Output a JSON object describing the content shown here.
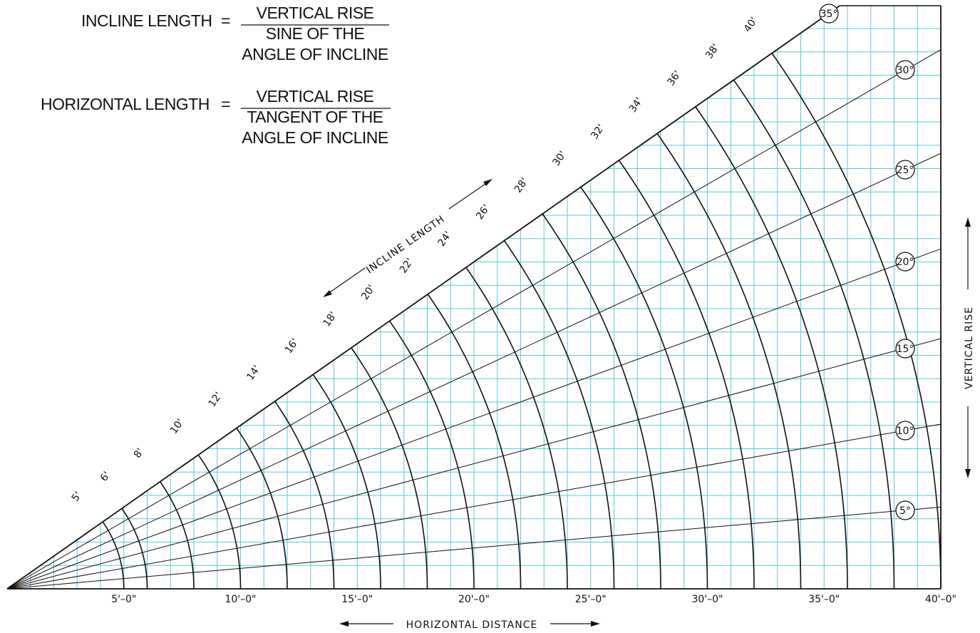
{
  "formulas": {
    "incline": {
      "lhs": "INCLINE LENGTH",
      "eq": "=",
      "numerator": "VERTICAL RISE",
      "denominator_line1": "SINE OF THE",
      "denominator_line2": "ANGLE OF INCLINE"
    },
    "horizontal": {
      "lhs": "HORIZONTAL LENGTH",
      "eq": "=",
      "numerator": "VERTICAL RISE",
      "denominator_line1": "TANGENT OF THE",
      "denominator_line2": "ANGLE OF INCLINE"
    }
  },
  "labels": {
    "incline_length": "INCLINE LENGTH",
    "vertical_rise": "VERTICAL RISE",
    "horizontal_distance": "HORIZONTAL DISTANCE"
  },
  "colors": {
    "grid": "#5ec8dc",
    "ink": "#111111"
  },
  "chart_data": {
    "type": "nomogram",
    "x_axis": {
      "label": "HORIZONTAL DISTANCE",
      "min_ft": 0,
      "max_ft": 40,
      "grid_step_ft": 1
    },
    "y_axis": {
      "label": "VERTICAL RISE",
      "grid_step_ft": 1
    },
    "x_ticks": [
      "5'–0\"",
      "10'–0\"",
      "15'–0\"",
      "20'–0\"",
      "25'–0\"",
      "30'–0\"",
      "35'–0\"",
      "40'–0\""
    ],
    "x_tick_values": [
      5,
      10,
      15,
      20,
      25,
      30,
      35,
      40
    ],
    "angle_lines_deg": [
      5,
      10,
      15,
      20,
      25,
      30
    ],
    "angle_labels": [
      "5°",
      "10°",
      "15°",
      "20°",
      "25°",
      "30°",
      "35°"
    ],
    "max_angle_deg": 35,
    "incline_arcs_ft": [
      5,
      6,
      8,
      10,
      12,
      14,
      16,
      18,
      20,
      22,
      24,
      26,
      28,
      30,
      32,
      34,
      36,
      38,
      40
    ],
    "incline_labels": [
      "5'",
      "6'",
      "8'",
      "10'",
      "12'",
      "14'",
      "16'",
      "18'",
      "20'",
      "22'",
      "24'",
      "26'",
      "28'",
      "30'",
      "32'",
      "34'",
      "36'",
      "38'",
      "40'"
    ]
  }
}
